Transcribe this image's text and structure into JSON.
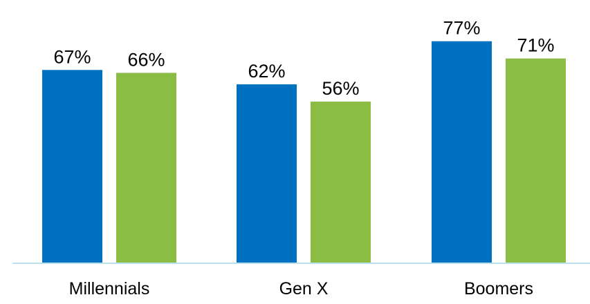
{
  "chart_data": {
    "type": "bar",
    "categories": [
      "Millennials",
      "Gen X",
      "Boomers"
    ],
    "series": [
      {
        "values": [
          67,
          62,
          77
        ],
        "labels": [
          "67%",
          "62%",
          "77%"
        ],
        "color": "#0070c0"
      },
      {
        "values": [
          66,
          56,
          71
        ],
        "labels": [
          "66%",
          "56%",
          "71%"
        ],
        "color": "#8bbd45"
      }
    ],
    "value_unit": "%",
    "ylim": [
      0,
      100
    ],
    "grid": false,
    "axis_visible": false,
    "baseline_color": "#bde0f0"
  }
}
